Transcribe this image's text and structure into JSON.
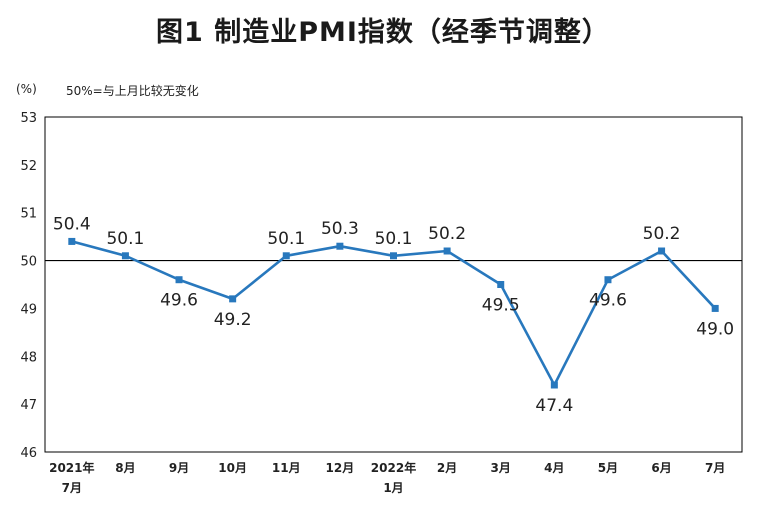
{
  "chart_data": {
    "type": "line",
    "title": "图1 制造业PMI指数（经季节调整）",
    "ylabel": "(%)",
    "reference_note": "50%=与上月比较无变化",
    "reference_value": 50,
    "ylim": [
      46,
      53
    ],
    "yticks": [
      46,
      47,
      48,
      49,
      50,
      51,
      52,
      53
    ],
    "categories": [
      [
        "2021年",
        "7月"
      ],
      [
        "8月"
      ],
      [
        "9月"
      ],
      [
        "10月"
      ],
      [
        "11月"
      ],
      [
        "12月"
      ],
      [
        "2022年",
        "1月"
      ],
      [
        "2月"
      ],
      [
        "3月"
      ],
      [
        "4月"
      ],
      [
        "5月"
      ],
      [
        "6月"
      ],
      [
        "7月"
      ]
    ],
    "series": [
      {
        "name": "制造业PMI",
        "color": "#2878bd",
        "values": [
          50.4,
          50.1,
          49.6,
          49.2,
          50.1,
          50.3,
          50.1,
          50.2,
          49.5,
          47.4,
          49.6,
          50.2,
          49.0
        ],
        "labels": [
          "50.4",
          "50.1",
          "49.6",
          "49.2",
          "50.1",
          "50.3",
          "50.1",
          "50.2",
          "49.5",
          "47.4",
          "49.6",
          "50.2",
          "49.0"
        ],
        "label_positions": [
          "above",
          "above",
          "below",
          "below",
          "above",
          "above",
          "above",
          "above",
          "below",
          "below",
          "below",
          "above",
          "below"
        ]
      }
    ]
  }
}
